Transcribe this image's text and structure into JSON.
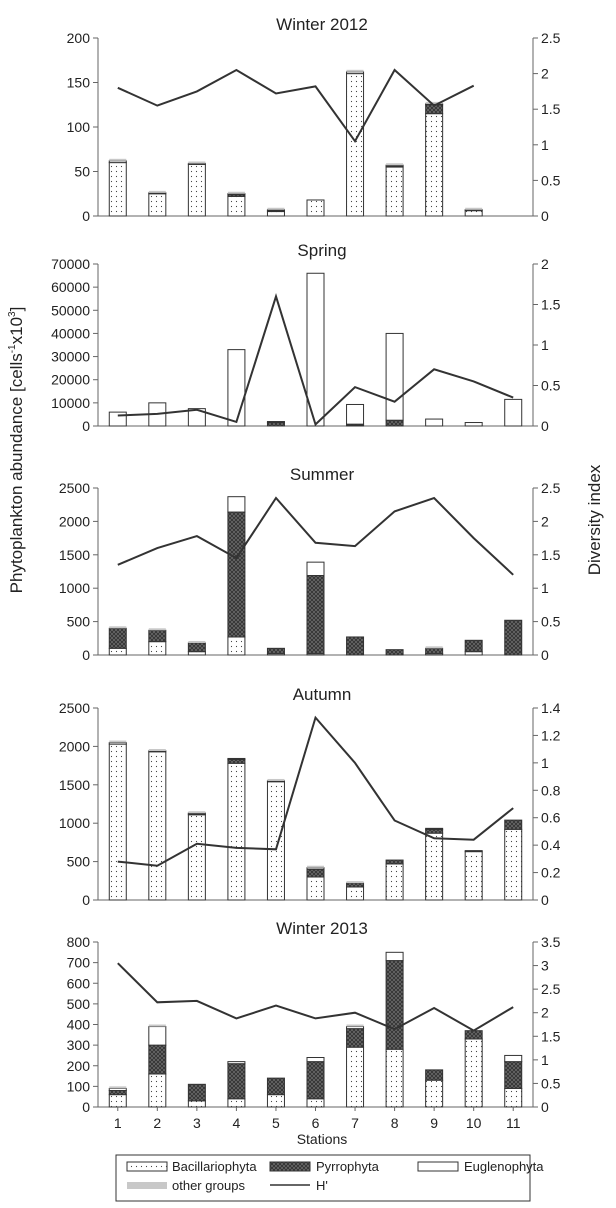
{
  "figure": {
    "ylabel_left": "Phytoplankton abundance [cells",
    "ylabel_left_sup1": "-1",
    "ylabel_left_mid": "x10",
    "ylabel_left_sup2": "3",
    "ylabel_left_end": "]",
    "ylabel_right": "Diversity index",
    "xlabel": "Stations",
    "stations": [
      "1",
      "2",
      "3",
      "4",
      "5",
      "6",
      "7",
      "8",
      "9",
      "10",
      "11"
    ]
  },
  "legend": {
    "items": [
      {
        "key": "bac",
        "label": "Bacillariophyta"
      },
      {
        "key": "pyr",
        "label": "Pyrrophyta"
      },
      {
        "key": "eug",
        "label": "Euglenophyta"
      },
      {
        "key": "oth",
        "label": "other groups"
      },
      {
        "key": "h",
        "label": "H'"
      }
    ]
  },
  "colors": {
    "bar_edge": "#333333",
    "other_groups": "#c8c8c8",
    "line": "#333333",
    "pyrrophyta_fill": "#555555"
  },
  "chart_data": [
    {
      "type": "bar",
      "title": "Winter 2012",
      "categories": [
        "1",
        "2",
        "3",
        "4",
        "5",
        "6",
        "7",
        "8",
        "9",
        "10"
      ],
      "ylim": [
        0,
        200
      ],
      "yticks": [
        0,
        50,
        100,
        150,
        200
      ],
      "y2lim": [
        0,
        2.5
      ],
      "y2ticks": [
        "0",
        "0.5",
        "1",
        "1.5",
        "2",
        "2.5"
      ],
      "series": [
        {
          "name": "Bacillariophyta",
          "values": [
            60,
            25,
            58,
            22,
            5,
            18,
            160,
            55,
            115,
            6
          ]
        },
        {
          "name": "Pyrrophyta",
          "values": [
            0,
            0,
            0,
            2,
            1,
            0,
            0,
            1,
            10,
            0
          ]
        },
        {
          "name": "Euglenophyta",
          "values": [
            2,
            1,
            1,
            1,
            1,
            0,
            2,
            1,
            1,
            1
          ]
        },
        {
          "name": "other groups",
          "values": [
            1,
            1,
            1,
            1,
            1,
            0,
            1,
            1,
            1,
            1
          ]
        }
      ],
      "h": [
        1.8,
        1.55,
        1.75,
        2.05,
        1.72,
        1.82,
        1.05,
        2.05,
        1.55,
        1.83
      ]
    },
    {
      "type": "bar",
      "title": "Spring",
      "categories": [
        "1",
        "2",
        "3",
        "4",
        "5",
        "6",
        "7",
        "8",
        "9",
        "10",
        "11"
      ],
      "ylim": [
        0,
        70000
      ],
      "yticks": [
        0,
        10000,
        20000,
        30000,
        40000,
        50000,
        60000,
        70000
      ],
      "y2lim": [
        0,
        2
      ],
      "y2ticks": [
        "0",
        "0.5",
        "1",
        "1.5",
        "2"
      ],
      "series": [
        {
          "name": "Bacillariophyta",
          "values": [
            0,
            0,
            0,
            0,
            0,
            0,
            300,
            0,
            0,
            0,
            0
          ]
        },
        {
          "name": "Pyrrophyta",
          "values": [
            0,
            0,
            0,
            0,
            1500,
            0,
            500,
            2500,
            0,
            0,
            0
          ]
        },
        {
          "name": "Euglenophyta",
          "values": [
            6000,
            10000,
            7500,
            33000,
            300,
            66000,
            8500,
            37500,
            3000,
            1500,
            11500
          ]
        },
        {
          "name": "other groups",
          "values": [
            0,
            0,
            0,
            0,
            0,
            0,
            0,
            0,
            0,
            0,
            0
          ]
        }
      ],
      "h": [
        0.13,
        0.15,
        0.2,
        0.05,
        1.6,
        0.02,
        0.48,
        0.3,
        0.7,
        0.55,
        0.35
      ]
    },
    {
      "type": "bar",
      "title": "Summer",
      "categories": [
        "1",
        "2",
        "3",
        "4",
        "5",
        "6",
        "7",
        "8",
        "9",
        "10",
        "11"
      ],
      "ylim": [
        0,
        2500
      ],
      "yticks": [
        0,
        500,
        1000,
        1500,
        2000,
        2500
      ],
      "y2lim": [
        0,
        2.5
      ],
      "y2ticks": [
        "0",
        "0.5",
        "1",
        "1.5",
        "2",
        "2.5"
      ],
      "series": [
        {
          "name": "Bacillariophyta",
          "values": [
            100,
            200,
            50,
            270,
            20,
            20,
            0,
            0,
            20,
            50,
            0
          ]
        },
        {
          "name": "Pyrrophyta",
          "values": [
            300,
            170,
            130,
            1870,
            80,
            1170,
            270,
            80,
            80,
            170,
            520
          ]
        },
        {
          "name": "Euglenophyta",
          "values": [
            0,
            0,
            0,
            230,
            0,
            200,
            0,
            0,
            0,
            0,
            0
          ]
        },
        {
          "name": "other groups",
          "values": [
            20,
            20,
            20,
            0,
            0,
            0,
            0,
            0,
            10,
            0,
            0
          ]
        }
      ],
      "h": [
        1.35,
        1.6,
        1.78,
        1.45,
        2.35,
        1.68,
        1.63,
        2.15,
        2.35,
        1.75,
        1.2
      ]
    },
    {
      "type": "bar",
      "title": "Autumn",
      "categories": [
        "1",
        "2",
        "3",
        "4",
        "5",
        "6",
        "7",
        "8",
        "9",
        "10",
        "11"
      ],
      "ylim": [
        0,
        2500
      ],
      "yticks": [
        0,
        500,
        1000,
        1500,
        2000,
        2500
      ],
      "y2lim": [
        0,
        1.4
      ],
      "y2ticks": [
        "0",
        "0.2",
        "0.4",
        "0.6",
        "0.8",
        "1",
        "1.2",
        "1.4"
      ],
      "series": [
        {
          "name": "Bacillariophyta",
          "values": [
            2030,
            1930,
            1110,
            1780,
            1540,
            300,
            170,
            470,
            870,
            630,
            920
          ]
        },
        {
          "name": "Pyrrophyta",
          "values": [
            0,
            0,
            10,
            50,
            0,
            100,
            50,
            50,
            50,
            0,
            120
          ]
        },
        {
          "name": "Euglenophyta",
          "values": [
            20,
            10,
            10,
            10,
            10,
            20,
            0,
            0,
            10,
            10,
            0
          ]
        },
        {
          "name": "other groups",
          "values": [
            20,
            10,
            10,
            0,
            10,
            10,
            10,
            0,
            0,
            0,
            0
          ]
        }
      ],
      "h": [
        0.28,
        0.25,
        0.41,
        0.38,
        0.37,
        1.33,
        1.0,
        0.58,
        0.45,
        0.44,
        0.67
      ]
    },
    {
      "type": "bar",
      "title": "Winter 2013",
      "categories": [
        "1",
        "2",
        "3",
        "4",
        "5",
        "6",
        "7",
        "8",
        "9",
        "10",
        "11"
      ],
      "ylim": [
        0,
        800
      ],
      "yticks": [
        0,
        100,
        200,
        300,
        400,
        500,
        600,
        700,
        800
      ],
      "y2lim": [
        0,
        3.5
      ],
      "y2ticks": [
        "0",
        "0.5",
        "1",
        "1.5",
        "2",
        "2.5",
        "3",
        "3.5"
      ],
      "series": [
        {
          "name": "Bacillariophyta",
          "values": [
            60,
            160,
            30,
            40,
            60,
            40,
            290,
            280,
            130,
            330,
            90
          ]
        },
        {
          "name": "Pyrrophyta",
          "values": [
            20,
            140,
            80,
            170,
            80,
            180,
            90,
            430,
            50,
            40,
            130
          ]
        },
        {
          "name": "Euglenophyta",
          "values": [
            10,
            90,
            0,
            10,
            0,
            20,
            10,
            40,
            0,
            0,
            30
          ]
        },
        {
          "name": "other groups",
          "values": [
            10,
            10,
            0,
            0,
            0,
            0,
            10,
            0,
            0,
            0,
            0
          ]
        }
      ],
      "h": [
        3.05,
        2.22,
        2.25,
        1.88,
        2.15,
        1.88,
        2.0,
        1.65,
        2.1,
        1.62,
        2.12
      ]
    }
  ]
}
